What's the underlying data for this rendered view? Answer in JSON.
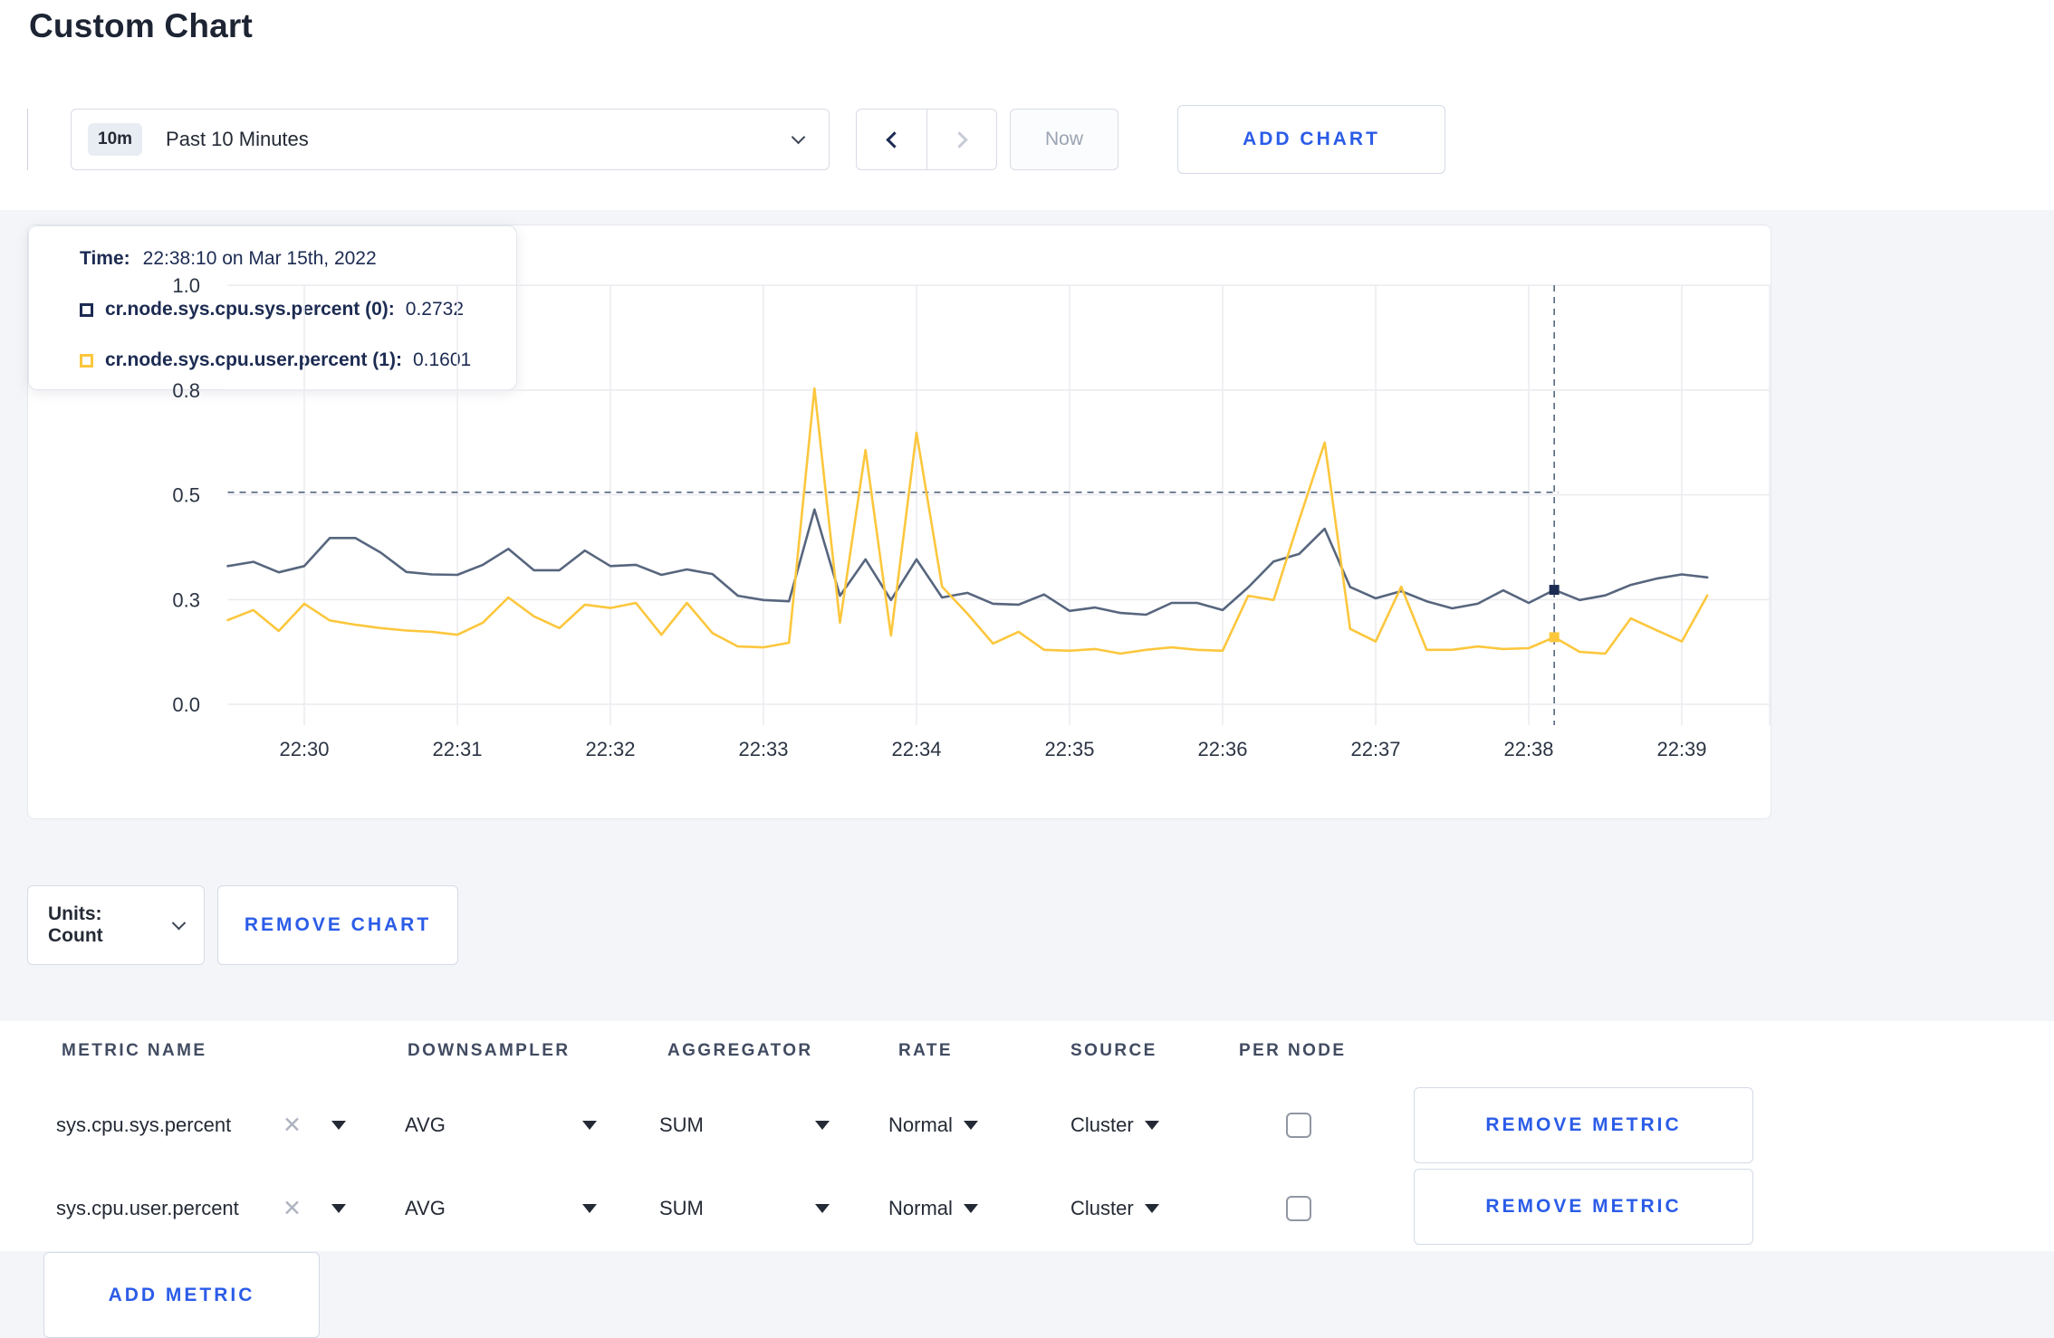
{
  "page": {
    "title": "Custom Chart"
  },
  "toolbar": {
    "time_range": {
      "badge": "10m",
      "label": "Past 10 Minutes",
      "chevron_icon": "chevron-down"
    },
    "prev_icon": "chevron-left",
    "next_icon": "chevron-right",
    "now_label": "Now",
    "add_chart_label": "ADD CHART"
  },
  "chart_controls": {
    "units_label": "Units: Count",
    "remove_chart_label": "REMOVE CHART"
  },
  "chart_data": {
    "type": "line",
    "title": "",
    "x_start_time": "22:29:30",
    "x_interval_seconds": 10,
    "x_ticks": [
      {
        "t": 30,
        "label": "22:30"
      },
      {
        "t": 90,
        "label": "22:31"
      },
      {
        "t": 150,
        "label": "22:32"
      },
      {
        "t": 210,
        "label": "22:33"
      },
      {
        "t": 270,
        "label": "22:34"
      },
      {
        "t": 330,
        "label": "22:35"
      },
      {
        "t": 390,
        "label": "22:36"
      },
      {
        "t": 450,
        "label": "22:37"
      },
      {
        "t": 510,
        "label": "22:38"
      },
      {
        "t": 570,
        "label": "22:39"
      }
    ],
    "y_ticks": [
      {
        "value": 0.0,
        "label": "0.0"
      },
      {
        "value": 0.25,
        "label": "0.3"
      },
      {
        "value": 0.5,
        "label": "0.5"
      },
      {
        "value": 0.75,
        "label": "0.8"
      },
      {
        "value": 1.0,
        "label": "1.0"
      }
    ],
    "y_range": [
      0,
      1
    ],
    "grid": true,
    "series": [
      {
        "name": "cr.node.sys.cpu.sys.percent (0)",
        "color": "#57667e",
        "swatch_color": "#1c2b52",
        "values": [
          0.33,
          0.34,
          0.315,
          0.33,
          0.397,
          0.397,
          0.362,
          0.316,
          0.31,
          0.309,
          0.333,
          0.371,
          0.32,
          0.32,
          0.367,
          0.33,
          0.333,
          0.309,
          0.322,
          0.311,
          0.259,
          0.249,
          0.246,
          0.465,
          0.259,
          0.346,
          0.249,
          0.346,
          0.255,
          0.266,
          0.24,
          0.238,
          0.262,
          0.223,
          0.231,
          0.218,
          0.214,
          0.242,
          0.242,
          0.225,
          0.279,
          0.341,
          0.359,
          0.419,
          0.28,
          0.253,
          0.27,
          0.246,
          0.229,
          0.24,
          0.272,
          0.242,
          0.2732,
          0.249,
          0.26,
          0.285,
          0.3,
          0.31,
          0.303
        ]
      },
      {
        "name": "cr.node.sys.cpu.user.percent (1)",
        "color": "#fcc73d",
        "swatch_color": "#fcc73d",
        "values": [
          0.201,
          0.225,
          0.175,
          0.24,
          0.2,
          0.19,
          0.182,
          0.176,
          0.173,
          0.166,
          0.195,
          0.255,
          0.21,
          0.182,
          0.238,
          0.23,
          0.242,
          0.166,
          0.242,
          0.17,
          0.138,
          0.136,
          0.147,
          0.754,
          0.195,
          0.607,
          0.164,
          0.648,
          0.281,
          0.216,
          0.145,
          0.173,
          0.13,
          0.128,
          0.132,
          0.121,
          0.13,
          0.136,
          0.13,
          0.128,
          0.259,
          0.249,
          0.44,
          0.625,
          0.18,
          0.15,
          0.281,
          0.13,
          0.13,
          0.138,
          0.132,
          0.134,
          0.1601,
          0.125,
          0.121,
          0.205,
          0.177,
          0.15,
          0.26
        ]
      }
    ],
    "crosshair": {
      "t_seconds": 520,
      "y_value": 0.506,
      "color": "#54677f"
    },
    "tooltip": {
      "time_label": "Time:",
      "time_value": "22:38:10 on Mar 15th, 2022",
      "rows": [
        {
          "label": "cr.node.sys.cpu.sys.percent (0):",
          "value": "0.2732"
        },
        {
          "label": "cr.node.sys.cpu.user.percent (1):",
          "value": "0.1601"
        }
      ]
    }
  },
  "metrics_table": {
    "columns": [
      "METRIC NAME",
      "DOWNSAMPLER",
      "AGGREGATOR",
      "RATE",
      "SOURCE",
      "PER NODE"
    ],
    "rows": [
      {
        "metric": "sys.cpu.sys.percent",
        "downsampler": "AVG",
        "aggregator": "SUM",
        "rate": "Normal",
        "source": "Cluster",
        "per_node_checked": false,
        "remove_label": "REMOVE METRIC"
      },
      {
        "metric": "sys.cpu.user.percent",
        "downsampler": "AVG",
        "aggregator": "SUM",
        "rate": "Normal",
        "source": "Cluster",
        "per_node_checked": false,
        "remove_label": "REMOVE METRIC"
      }
    ],
    "add_metric_label": "ADD METRIC"
  },
  "colors": {
    "accent_blue": "#2b5ce8",
    "page_background": "#f4f5f8",
    "gridline": "#ececf1"
  }
}
